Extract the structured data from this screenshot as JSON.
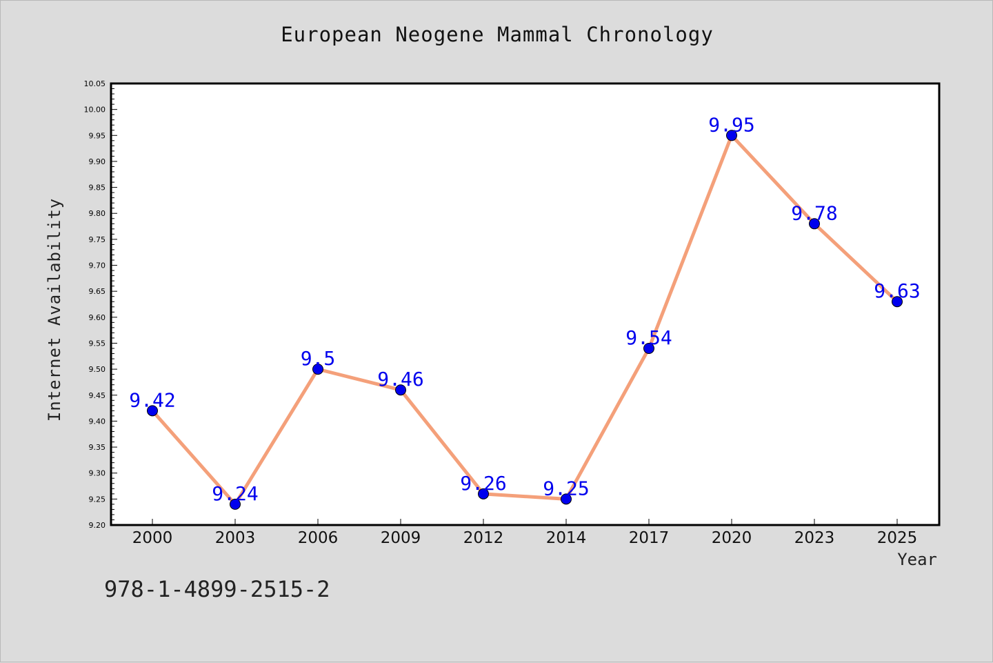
{
  "chart_data": {
    "type": "line",
    "title": "European Neogene Mammal Chronology",
    "xlabel": "Year",
    "ylabel": "Internet Availability",
    "categories": [
      "2000",
      "2003",
      "2006",
      "2009",
      "2012",
      "2014",
      "2017",
      "2020",
      "2023",
      "2025"
    ],
    "values": [
      9.42,
      9.24,
      9.5,
      9.46,
      9.26,
      9.25,
      9.54,
      9.95,
      9.78,
      9.63
    ],
    "data_labels": [
      "9.42",
      "9.24",
      "9.5",
      "9.46",
      "9.26",
      "9.25",
      "9.54",
      "9.95",
      "9.78",
      "9.63"
    ],
    "yticks": [
      "9.20",
      "9.25",
      "9.30",
      "9.35",
      "9.40",
      "9.45",
      "9.50",
      "9.55",
      "9.60",
      "9.65",
      "9.70",
      "9.75",
      "9.80",
      "9.85",
      "9.90",
      "9.95",
      "10.00",
      "10.05"
    ],
    "ylim": [
      9.2,
      10.05
    ],
    "grid": false,
    "line_color": "#f4a07a",
    "marker_color": "#0000ee",
    "label_color": "#0000ee"
  },
  "footer": {
    "isbn": "978-1-4899-2515-2"
  }
}
